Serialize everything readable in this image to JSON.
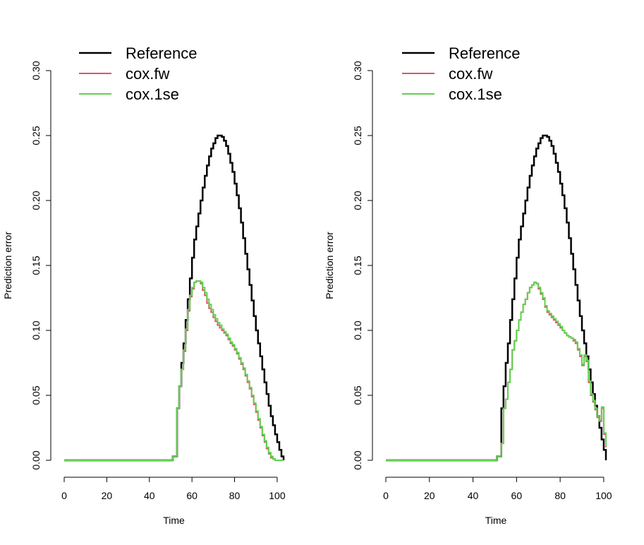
{
  "colors": {
    "Reference": "#000000",
    "cox.fw": "#DF536B",
    "cox.1se": "#61D04F"
  },
  "chart_data": [
    {
      "type": "line",
      "step": "post",
      "xlabel": "Time",
      "ylabel": "Prediction error",
      "xlim": [
        0,
        103
      ],
      "ylim": [
        0,
        0.3
      ],
      "xticks": [
        "0",
        "20",
        "40",
        "60",
        "80",
        "100"
      ],
      "yticks": [
        "0.00",
        "0.05",
        "0.10",
        "0.15",
        "0.20",
        "0.25",
        "0.30"
      ],
      "grid": false,
      "legend_position": "top-left",
      "series": [
        {
          "name": "Reference",
          "x": [
            0,
            51,
            53,
            54,
            55,
            56,
            57,
            58,
            59,
            60,
            61,
            62,
            63,
            64,
            65,
            66,
            67,
            68,
            69,
            70,
            71,
            72,
            73,
            74,
            75,
            76,
            77,
            78,
            79,
            80,
            81,
            82,
            83,
            84,
            85,
            86,
            87,
            88,
            89,
            90,
            91,
            92,
            93,
            94,
            95,
            96,
            97,
            98,
            99,
            100,
            101,
            102,
            103
          ],
          "y": [
            0,
            0.003,
            0.04,
            0.057,
            0.075,
            0.09,
            0.108,
            0.124,
            0.14,
            0.156,
            0.17,
            0.18,
            0.19,
            0.2,
            0.21,
            0.219,
            0.227,
            0.234,
            0.24,
            0.244,
            0.248,
            0.25,
            0.25,
            0.249,
            0.246,
            0.242,
            0.236,
            0.229,
            0.222,
            0.213,
            0.204,
            0.194,
            0.183,
            0.171,
            0.159,
            0.147,
            0.135,
            0.123,
            0.111,
            0.1,
            0.09,
            0.08,
            0.07,
            0.06,
            0.051,
            0.042,
            0.034,
            0.027,
            0.02,
            0.014,
            0.008,
            0.003,
            0
          ]
        },
        {
          "name": "cox.fw",
          "x": [
            0,
            51,
            53,
            54,
            55,
            56,
            57,
            58,
            59,
            60,
            61,
            62,
            63,
            64,
            65,
            66,
            67,
            68,
            69,
            70,
            71,
            72,
            73,
            74,
            75,
            76,
            77,
            78,
            79,
            80,
            81,
            82,
            83,
            84,
            85,
            86,
            87,
            88,
            89,
            90,
            91,
            92,
            93,
            94,
            95,
            96,
            97,
            98,
            99,
            100,
            101,
            102,
            103
          ],
          "y": [
            0,
            0.003,
            0.04,
            0.057,
            0.07,
            0.084,
            0.1,
            0.115,
            0.126,
            0.132,
            0.137,
            0.138,
            0.138,
            0.136,
            0.131,
            0.127,
            0.121,
            0.117,
            0.114,
            0.11,
            0.107,
            0.104,
            0.102,
            0.1,
            0.098,
            0.096,
            0.093,
            0.09,
            0.088,
            0.085,
            0.082,
            0.078,
            0.074,
            0.07,
            0.065,
            0.06,
            0.055,
            0.049,
            0.043,
            0.037,
            0.031,
            0.025,
            0.019,
            0.014,
            0.009,
            0.005,
            0.002,
            0.001,
            0,
            0,
            0,
            0,
            0
          ]
        },
        {
          "name": "cox.1se",
          "x": [
            0,
            51,
            53,
            54,
            55,
            56,
            57,
            58,
            59,
            60,
            61,
            62,
            63,
            64,
            65,
            66,
            67,
            68,
            69,
            70,
            71,
            72,
            73,
            74,
            75,
            76,
            77,
            78,
            79,
            80,
            81,
            82,
            83,
            84,
            85,
            86,
            87,
            88,
            89,
            90,
            91,
            92,
            93,
            94,
            95,
            96,
            97,
            98,
            99,
            100,
            101,
            102,
            103
          ],
          "y": [
            0,
            0.003,
            0.04,
            0.057,
            0.07,
            0.085,
            0.101,
            0.116,
            0.127,
            0.133,
            0.137,
            0.138,
            0.138,
            0.137,
            0.133,
            0.129,
            0.124,
            0.12,
            0.116,
            0.112,
            0.109,
            0.106,
            0.104,
            0.101,
            0.099,
            0.097,
            0.094,
            0.091,
            0.089,
            0.086,
            0.083,
            0.079,
            0.075,
            0.071,
            0.066,
            0.061,
            0.056,
            0.05,
            0.044,
            0.038,
            0.032,
            0.026,
            0.02,
            0.015,
            0.01,
            0.006,
            0.003,
            0.001,
            0,
            0,
            0,
            0,
            0
          ]
        }
      ]
    },
    {
      "type": "line",
      "step": "post",
      "xlabel": "Time",
      "ylabel": "Prediction error",
      "xlim": [
        0,
        101
      ],
      "ylim": [
        0,
        0.3
      ],
      "xticks": [
        "0",
        "20",
        "40",
        "60",
        "80",
        "100"
      ],
      "yticks": [
        "0.00",
        "0.05",
        "0.10",
        "0.15",
        "0.20",
        "0.25",
        "0.30"
      ],
      "grid": false,
      "legend_position": "top-left",
      "series": [
        {
          "name": "Reference",
          "x": [
            0,
            51,
            53,
            54,
            55,
            56,
            57,
            58,
            59,
            60,
            61,
            62,
            63,
            64,
            65,
            66,
            67,
            68,
            69,
            70,
            71,
            72,
            73,
            74,
            75,
            76,
            77,
            78,
            79,
            80,
            81,
            82,
            83,
            84,
            85,
            86,
            87,
            88,
            89,
            90,
            91,
            92,
            93,
            94,
            95,
            96,
            97,
            98,
            99,
            100,
            101
          ],
          "y": [
            0,
            0.003,
            0.04,
            0.057,
            0.075,
            0.09,
            0.108,
            0.124,
            0.14,
            0.156,
            0.17,
            0.18,
            0.19,
            0.2,
            0.21,
            0.219,
            0.227,
            0.234,
            0.24,
            0.244,
            0.248,
            0.25,
            0.25,
            0.249,
            0.246,
            0.242,
            0.236,
            0.229,
            0.222,
            0.213,
            0.204,
            0.194,
            0.183,
            0.171,
            0.159,
            0.147,
            0.135,
            0.123,
            0.111,
            0.1,
            0.09,
            0.08,
            0.07,
            0.06,
            0.051,
            0.042,
            0.034,
            0.025,
            0.016,
            0.008,
            0
          ]
        },
        {
          "name": "cox.fw",
          "x": [
            0,
            51,
            53,
            54,
            55,
            56,
            57,
            58,
            59,
            60,
            61,
            62,
            63,
            64,
            65,
            66,
            67,
            68,
            69,
            70,
            71,
            72,
            73,
            74,
            75,
            76,
            77,
            78,
            79,
            80,
            81,
            82,
            83,
            84,
            85,
            86,
            87,
            88,
            89,
            90,
            91,
            92,
            93,
            94,
            95,
            96,
            97,
            98,
            99,
            100,
            101
          ],
          "y": [
            0,
            0.003,
            0.013,
            0.04,
            0.047,
            0.06,
            0.07,
            0.085,
            0.092,
            0.1,
            0.108,
            0.114,
            0.12,
            0.124,
            0.129,
            0.133,
            0.135,
            0.137,
            0.136,
            0.132,
            0.128,
            0.124,
            0.118,
            0.114,
            0.112,
            0.11,
            0.108,
            0.106,
            0.104,
            0.102,
            0.1,
            0.098,
            0.096,
            0.095,
            0.094,
            0.092,
            0.09,
            0.085,
            0.08,
            0.073,
            0.08,
            0.076,
            0.06,
            0.05,
            0.045,
            0.039,
            0.033,
            0.03,
            0.04,
            0.02,
            0.01
          ]
        },
        {
          "name": "cox.1se",
          "x": [
            0,
            51,
            53,
            54,
            55,
            56,
            57,
            58,
            59,
            60,
            61,
            62,
            63,
            64,
            65,
            66,
            67,
            68,
            69,
            70,
            71,
            72,
            73,
            74,
            75,
            76,
            77,
            78,
            79,
            80,
            81,
            82,
            83,
            84,
            85,
            86,
            87,
            88,
            89,
            90,
            91,
            92,
            93,
            94,
            95,
            96,
            97,
            98,
            99,
            100,
            101
          ],
          "y": [
            0,
            0.003,
            0.013,
            0.04,
            0.047,
            0.06,
            0.07,
            0.085,
            0.092,
            0.1,
            0.108,
            0.114,
            0.12,
            0.124,
            0.129,
            0.133,
            0.135,
            0.137,
            0.136,
            0.133,
            0.129,
            0.125,
            0.119,
            0.115,
            0.113,
            0.111,
            0.109,
            0.107,
            0.105,
            0.103,
            0.1,
            0.098,
            0.096,
            0.095,
            0.094,
            0.093,
            0.091,
            0.086,
            0.081,
            0.074,
            0.081,
            0.077,
            0.061,
            0.051,
            0.046,
            0.04,
            0.034,
            0.031,
            0.041,
            0.021,
            0.011
          ]
        }
      ]
    }
  ]
}
